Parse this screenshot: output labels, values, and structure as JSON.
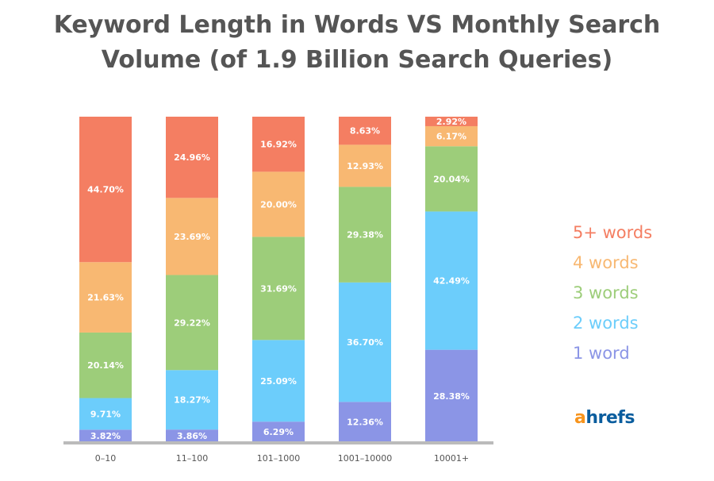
{
  "chart_data": {
    "type": "bar",
    "stacked": true,
    "title": "Keyword Length in Words VS Monthly Search Volume (of 1.9 Billion Search Queries)",
    "title_lines": [
      "Keyword Length in Words VS Monthly Search",
      "Volume (of 1.9 Billion Search Queries)"
    ],
    "xlabel": "",
    "ylabel": "",
    "ylim": [
      0,
      100
    ],
    "categories": [
      "0–10",
      "11–100",
      "101–1000",
      "1001–10000",
      "10001+"
    ],
    "series": [
      {
        "name": "1 word",
        "color": "#8B95E6",
        "values": [
          3.82,
          3.86,
          6.29,
          12.36,
          28.38
        ]
      },
      {
        "name": "2 words",
        "color": "#6CCDFB",
        "values": [
          9.71,
          18.27,
          25.09,
          36.7,
          42.49
        ]
      },
      {
        "name": "3 words",
        "color": "#9DCD7A",
        "values": [
          20.14,
          29.22,
          31.69,
          29.38,
          20.04
        ]
      },
      {
        "name": "4 words",
        "color": "#F8B872",
        "values": [
          21.63,
          23.69,
          20.0,
          12.93,
          6.17
        ]
      },
      {
        "name": "5+ words",
        "color": "#F47E62",
        "values": [
          44.7,
          24.96,
          16.92,
          8.63,
          2.92
        ]
      }
    ],
    "legend_position": "right",
    "grid": false
  },
  "logo": {
    "text_a": "a",
    "text_rest": "hrefs",
    "color_a": "#F7941D",
    "color_rest": "#0A5D9E"
  }
}
